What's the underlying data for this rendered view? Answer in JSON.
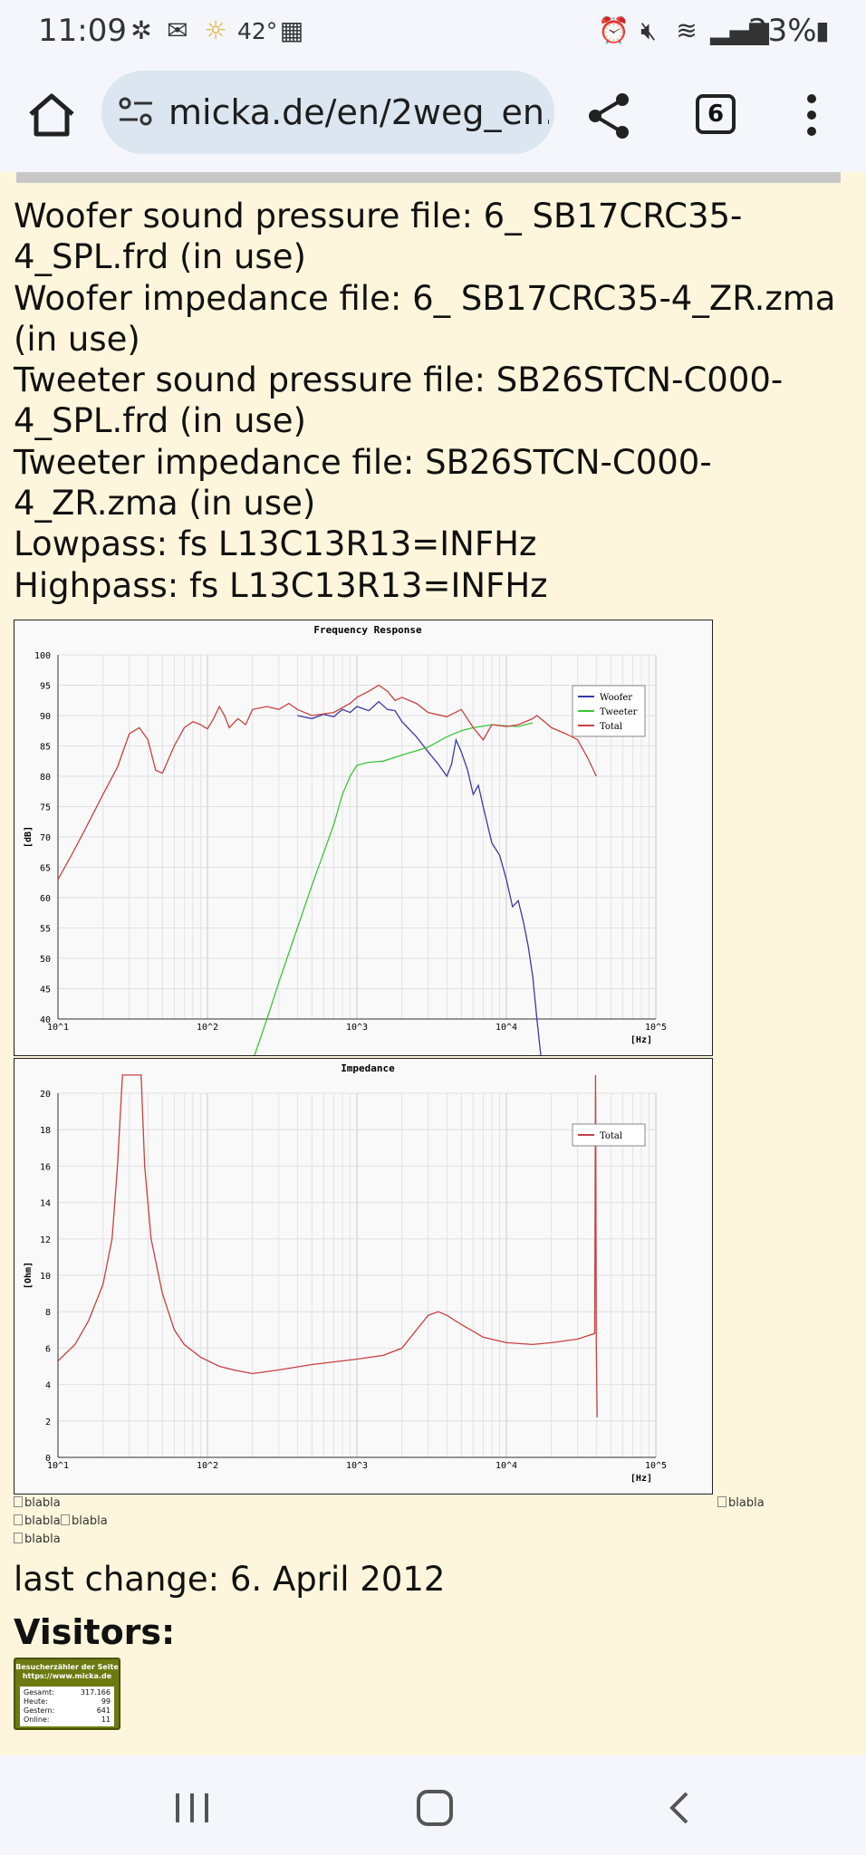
{
  "status_bar": {
    "time": "11:09",
    "temperature": "42°",
    "battery": "23%"
  },
  "browser": {
    "url": "micka.de/en/2weg_en.",
    "tab_count": "6"
  },
  "info_lines": [
    "Woofer sound pressure file: 6_ SB17CRC35-4_SPL.frd (in use)",
    "Woofer impedance file: 6_ SB17CRC35-4_ZR.zma (in use)",
    "Tweeter sound pressure file: SB26STCN-C000-4_SPL.frd (in use)",
    "Tweeter impedance file: SB26STCN-C000-4_ZR.zma (in use)",
    "Lowpass: fs L13C13R13=INFHz",
    "Highpass: fs L13C13R13=INFHz"
  ],
  "chart_data": [
    {
      "type": "line",
      "title": "Frequency Response",
      "ylabel": "[dB]",
      "xlabel": "[Hz]",
      "xscale": "log",
      "xlim": [
        10,
        100000
      ],
      "ylim": [
        40,
        100
      ],
      "yticks": [
        "100",
        "95",
        "90",
        "85",
        "80",
        "75",
        "70",
        "65",
        "60",
        "55",
        "50",
        "45",
        "40"
      ],
      "xticks": [
        "10^1",
        "10^2",
        "10^3",
        "10^4",
        "10^5"
      ],
      "legend": "top-right",
      "grid": true,
      "series": [
        {
          "name": "Woofer",
          "color": "#3a3aa8",
          "points": [
            [
              400,
              90
            ],
            [
              500,
              89.5
            ],
            [
              600,
              90.2
            ],
            [
              700,
              89.8
            ],
            [
              800,
              91
            ],
            [
              900,
              90.5
            ],
            [
              1000,
              91.5
            ],
            [
              1200,
              90.8
            ],
            [
              1400,
              92.3
            ],
            [
              1600,
              91
            ],
            [
              1800,
              90.8
            ],
            [
              2000,
              89
            ],
            [
              2500,
              86.5
            ],
            [
              3000,
              84
            ],
            [
              3500,
              82
            ],
            [
              4000,
              80
            ],
            [
              4300,
              82
            ],
            [
              4600,
              86
            ],
            [
              5000,
              84
            ],
            [
              5500,
              81
            ],
            [
              6000,
              77
            ],
            [
              6500,
              78.5
            ],
            [
              7000,
              75
            ],
            [
              8000,
              69
            ],
            [
              9000,
              67
            ],
            [
              10000,
              63
            ],
            [
              11000,
              58.5
            ],
            [
              12000,
              59.5
            ],
            [
              13000,
              56
            ],
            [
              14000,
              52
            ],
            [
              15000,
              47
            ],
            [
              16000,
              40
            ],
            [
              17000,
              34
            ]
          ]
        },
        {
          "name": "Tweeter",
          "color": "#3cc43c",
          "points": [
            [
              200,
              33
            ],
            [
              250,
              40
            ],
            [
              300,
              46
            ],
            [
              400,
              55
            ],
            [
              500,
              62
            ],
            [
              700,
              72
            ],
            [
              800,
              77
            ],
            [
              900,
              80
            ],
            [
              1000,
              81.8
            ],
            [
              1200,
              82.3
            ],
            [
              1500,
              82.5
            ],
            [
              2000,
              83.5
            ],
            [
              2500,
              84.2
            ],
            [
              3000,
              84.8
            ],
            [
              4000,
              86.5
            ],
            [
              5000,
              87.5
            ],
            [
              6000,
              88
            ],
            [
              8000,
              88.5
            ],
            [
              10000,
              88.3
            ],
            [
              12000,
              88.2
            ],
            [
              15000,
              88.8
            ]
          ]
        },
        {
          "name": "Total",
          "color": "#c84040",
          "points": [
            [
              10,
              63
            ],
            [
              12,
              66.5
            ],
            [
              15,
              71
            ],
            [
              20,
              77
            ],
            [
              25,
              81.5
            ],
            [
              30,
              87
            ],
            [
              35,
              88
            ],
            [
              40,
              86
            ],
            [
              45,
              81
            ],
            [
              50,
              80.5
            ],
            [
              60,
              85
            ],
            [
              70,
              88
            ],
            [
              80,
              89
            ],
            [
              90,
              88.5
            ],
            [
              100,
              87.8
            ],
            [
              110,
              89.5
            ],
            [
              120,
              91.5
            ],
            [
              130,
              90
            ],
            [
              140,
              88
            ],
            [
              160,
              89.5
            ],
            [
              180,
              88.5
            ],
            [
              200,
              91
            ],
            [
              250,
              91.5
            ],
            [
              300,
              91
            ],
            [
              350,
              92
            ],
            [
              400,
              91
            ],
            [
              500,
              90
            ],
            [
              700,
              90.5
            ],
            [
              900,
              92
            ],
            [
              1000,
              93
            ],
            [
              1200,
              94
            ],
            [
              1400,
              95
            ],
            [
              1600,
              94
            ],
            [
              1800,
              92.5
            ],
            [
              2000,
              93
            ],
            [
              2500,
              92
            ],
            [
              3000,
              90.5
            ],
            [
              4000,
              89.8
            ],
            [
              5000,
              91
            ],
            [
              6000,
              88
            ],
            [
              7000,
              86
            ],
            [
              8000,
              88.5
            ],
            [
              10000,
              88.2
            ],
            [
              12000,
              88.5
            ],
            [
              15000,
              89.5
            ],
            [
              16000,
              90
            ],
            [
              18000,
              89
            ],
            [
              20000,
              88
            ],
            [
              25000,
              87
            ],
            [
              30000,
              86
            ],
            [
              35000,
              83
            ],
            [
              40000,
              80
            ]
          ]
        }
      ]
    },
    {
      "type": "line",
      "title": "Impedance",
      "ylabel": "[Ohm]",
      "xlabel": "[Hz]",
      "xscale": "log",
      "xlim": [
        10,
        100000
      ],
      "ylim": [
        0,
        20
      ],
      "yticks": [
        "20",
        "18",
        "16",
        "14",
        "12",
        "10",
        "8",
        "6",
        "4",
        "2",
        "0"
      ],
      "xticks": [
        "10^1",
        "10^2",
        "10^3",
        "10^4",
        "10^5"
      ],
      "legend": "top-right",
      "grid": true,
      "series": [
        {
          "name": "Total",
          "color": "#c84040",
          "points": [
            [
              10,
              5.3
            ],
            [
              13,
              6.2
            ],
            [
              16,
              7.5
            ],
            [
              20,
              9.5
            ],
            [
              23,
              12
            ],
            [
              25,
              16
            ],
            [
              27,
              21
            ],
            [
              36,
              21
            ],
            [
              38,
              16
            ],
            [
              42,
              12
            ],
            [
              50,
              9
            ],
            [
              60,
              7
            ],
            [
              70,
              6.2
            ],
            [
              90,
              5.5
            ],
            [
              120,
              5
            ],
            [
              150,
              4.8
            ],
            [
              200,
              4.6
            ],
            [
              300,
              4.8
            ],
            [
              500,
              5.1
            ],
            [
              800,
              5.3
            ],
            [
              1000,
              5.4
            ],
            [
              1500,
              5.6
            ],
            [
              2000,
              6
            ],
            [
              2500,
              7
            ],
            [
              3000,
              7.8
            ],
            [
              3500,
              8
            ],
            [
              4000,
              7.8
            ],
            [
              5000,
              7.3
            ],
            [
              7000,
              6.6
            ],
            [
              10000,
              6.3
            ],
            [
              15000,
              6.2
            ],
            [
              20000,
              6.3
            ],
            [
              30000,
              6.5
            ],
            [
              39000,
              6.8
            ],
            [
              39500,
              21
            ],
            [
              40000,
              6
            ],
            [
              40500,
              2.2
            ]
          ]
        }
      ]
    }
  ],
  "broken_images": {
    "label": "blabla"
  },
  "last_change": "last change: 6. April 2012",
  "visitors": {
    "title": "Visitors:",
    "counter_title": "Besucherzähler der Seite",
    "counter_url": "https://www.micka.de",
    "rows": [
      {
        "label": "Gesamt:",
        "value": "317.166"
      },
      {
        "label": "Heute:",
        "value": "99"
      },
      {
        "label": "Gestern:",
        "value": "641"
      },
      {
        "label": "Online:",
        "value": "11"
      }
    ]
  }
}
